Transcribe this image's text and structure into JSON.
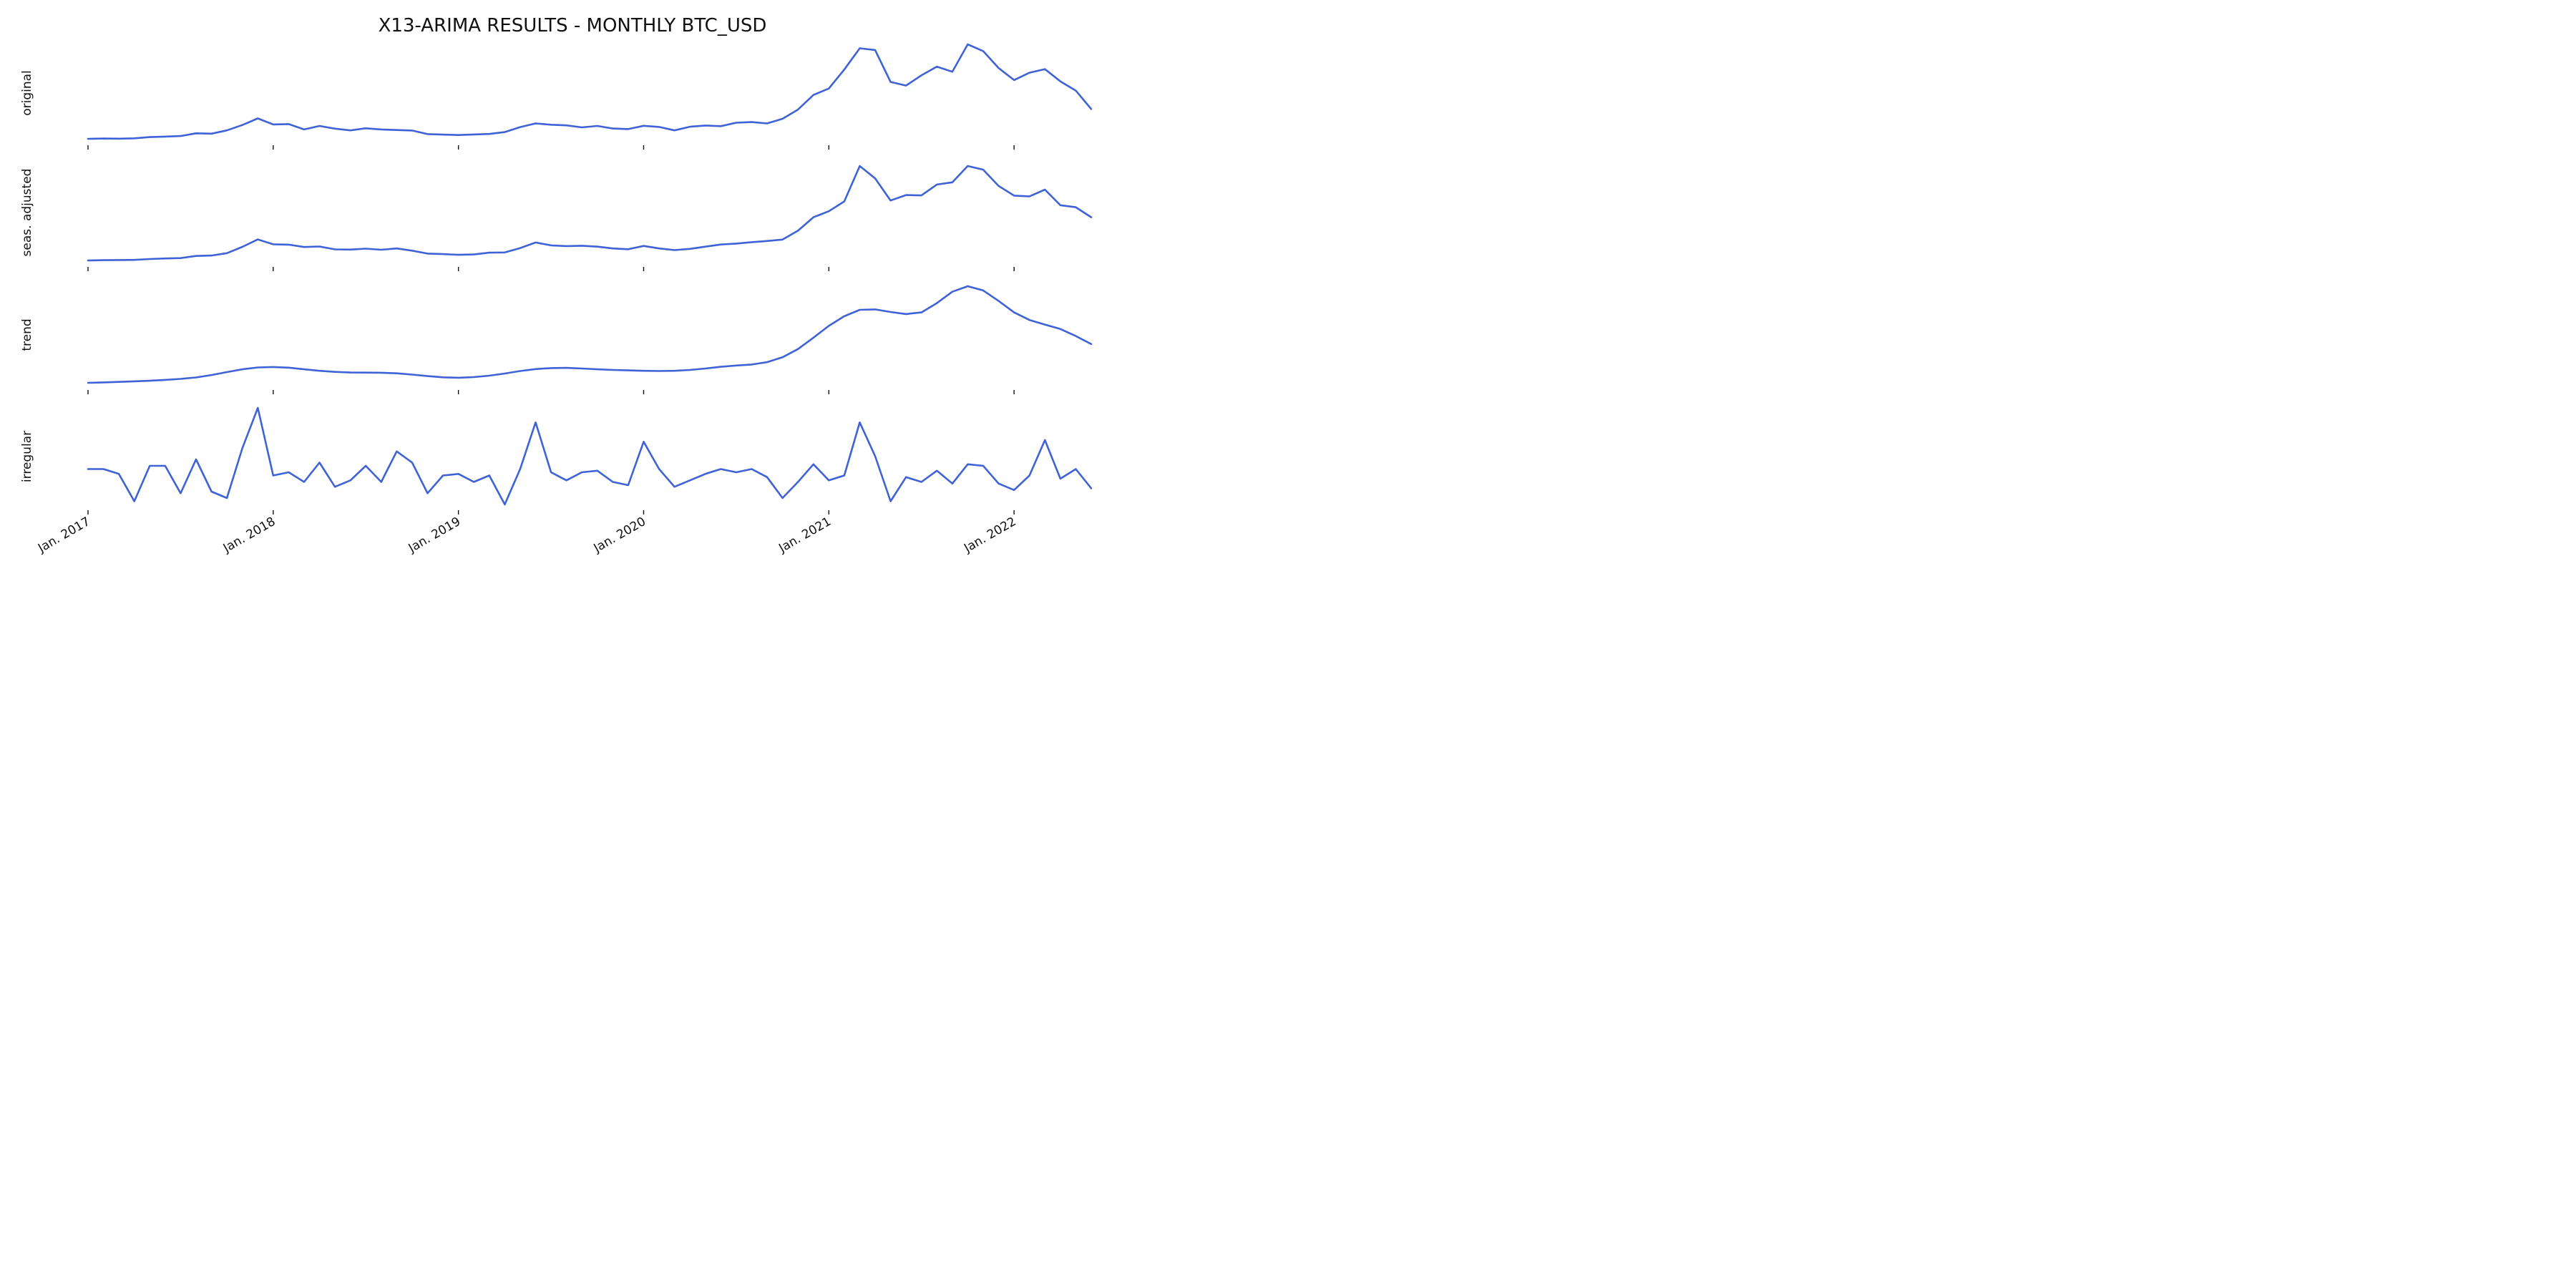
{
  "chart_data": {
    "type": "line",
    "title": "X13-ARIMA RESULTS - MONTHLY BTC_USD",
    "line_color": "#3f63d6",
    "x_tick_labels": [
      "Jan. 2017",
      "Jan. 2018",
      "Jan. 2019",
      "Jan. 2020",
      "Jan. 2021",
      "Jan. 2022"
    ],
    "x_range": [
      "2017-01",
      "2022-06"
    ],
    "x": [
      "2017-01",
      "2017-02",
      "2017-03",
      "2017-04",
      "2017-05",
      "2017-06",
      "2017-07",
      "2017-08",
      "2017-09",
      "2017-10",
      "2017-11",
      "2017-12",
      "2018-01",
      "2018-02",
      "2018-03",
      "2018-04",
      "2018-05",
      "2018-06",
      "2018-07",
      "2018-08",
      "2018-09",
      "2018-10",
      "2018-11",
      "2018-12",
      "2019-01",
      "2019-02",
      "2019-03",
      "2019-04",
      "2019-05",
      "2019-06",
      "2019-07",
      "2019-08",
      "2019-09",
      "2019-10",
      "2019-11",
      "2019-12",
      "2020-01",
      "2020-02",
      "2020-03",
      "2020-04",
      "2020-05",
      "2020-06",
      "2020-07",
      "2020-08",
      "2020-09",
      "2020-10",
      "2020-11",
      "2020-12",
      "2021-01",
      "2021-02",
      "2021-03",
      "2021-04",
      "2021-05",
      "2021-06",
      "2021-07",
      "2021-08",
      "2021-09",
      "2021-10",
      "2021-11",
      "2021-12",
      "2022-01",
      "2022-02",
      "2022-03",
      "2022-04",
      "2022-05",
      "2022-06"
    ],
    "y_ticks_shown": false,
    "grid": false,
    "legend": "none",
    "series": [
      {
        "name": "original",
        "values": [
          1000,
          1200,
          1100,
          1300,
          2100,
          2400,
          2800,
          4500,
          4300,
          6400,
          9800,
          14000,
          10200,
          10400,
          7000,
          9200,
          7500,
          6400,
          7700,
          7000,
          6600,
          6300,
          4000,
          3700,
          3400,
          3800,
          4100,
          5300,
          8500,
          10800,
          10000,
          9600,
          8300,
          9200,
          7600,
          7200,
          9300,
          8600,
          6400,
          8700,
          9500,
          9100,
          11300,
          11700,
          10800,
          13800,
          19700,
          29000,
          33100,
          45200,
          58800,
          57700,
          37300,
          35000,
          41500,
          47100,
          43800,
          61300,
          57000,
          46200,
          38500,
          43200,
          45500,
          37700,
          31800,
          20000
        ]
      },
      {
        "name": "seas. adjusted",
        "values": [
          1000,
          1150,
          1250,
          1300,
          1800,
          2100,
          2300,
          3500,
          3700,
          5000,
          8500,
          12600,
          9900,
          9700,
          8400,
          8700,
          7100,
          7000,
          7500,
          6900,
          7600,
          6400,
          4800,
          4500,
          4100,
          4300,
          5300,
          5400,
          7800,
          10900,
          9300,
          8900,
          9100,
          8600,
          7600,
          7200,
          9000,
          7600,
          6700,
          7400,
          8600,
          9800,
          10300,
          11100,
          11700,
          12500,
          17400,
          24800,
          28100,
          33500,
          53000,
          46200,
          34000,
          37000,
          36800,
          42800,
          44000,
          53000,
          51000,
          42000,
          36700,
          36300,
          40000,
          31400,
          30300,
          24800
        ]
      },
      {
        "name": "trend",
        "values": [
          1000,
          1200,
          1450,
          1700,
          2000,
          2400,
          2850,
          3550,
          4700,
          6100,
          7400,
          8300,
          8500,
          8200,
          7400,
          6700,
          6200,
          5900,
          5850,
          5800,
          5500,
          4900,
          4200,
          3600,
          3400,
          3700,
          4400,
          5400,
          6600,
          7500,
          8000,
          8100,
          7800,
          7400,
          7100,
          6900,
          6700,
          6600,
          6700,
          7100,
          7800,
          8600,
          9200,
          9700,
          10800,
          13100,
          17000,
          22400,
          28000,
          32600,
          35600,
          35800,
          34600,
          33600,
          34400,
          38800,
          44200,
          46800,
          44800,
          39800,
          34400,
          30800,
          28600,
          26500,
          23200,
          19400
        ]
      },
      {
        "name": "irregular",
        "values": [
          1.0,
          1.0,
          0.97,
          0.8,
          1.02,
          1.02,
          0.85,
          1.06,
          0.86,
          0.82,
          1.13,
          1.38,
          0.96,
          0.98,
          0.92,
          1.04,
          0.89,
          0.93,
          1.02,
          0.92,
          1.11,
          1.04,
          0.85,
          0.96,
          0.97,
          0.92,
          0.96,
          0.78,
          1.0,
          1.29,
          0.98,
          0.93,
          0.98,
          0.99,
          0.92,
          0.9,
          1.17,
          1.0,
          0.89,
          0.93,
          0.97,
          1.0,
          0.98,
          1.0,
          0.95,
          0.82,
          0.92,
          1.03,
          0.93,
          0.96,
          1.29,
          1.08,
          0.8,
          0.95,
          0.92,
          0.99,
          0.91,
          1.03,
          1.02,
          0.91,
          0.87,
          0.96,
          1.18,
          0.94,
          1.0,
          0.88
        ]
      }
    ]
  }
}
